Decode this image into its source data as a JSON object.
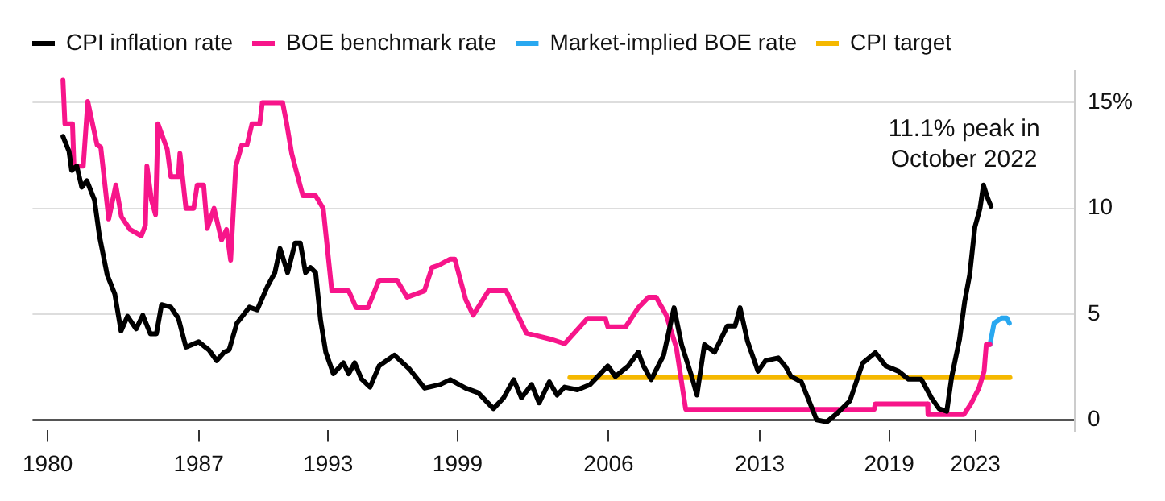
{
  "chart_data": {
    "type": "line",
    "legend": "top left",
    "grid": "y",
    "marker": "none",
    "line_style": "solid",
    "xlim": [
      1979.3,
      2027.6
    ],
    "xticks": [
      1980,
      1987,
      1993,
      1999,
      2006,
      2013,
      2019,
      2023
    ],
    "ylim": [
      -0.5,
      16.5
    ],
    "yticks": [
      0,
      5,
      10,
      {
        "value": 15,
        "label": "15%"
      }
    ],
    "annotations": [
      {
        "text": "11.1% peak in October 2022",
        "x": 2023.37,
        "y": 11.1
      }
    ],
    "series": [
      {
        "name": "CPI inflation rate",
        "color": "#000000",
        "x": [
          1980.71,
          1980.99,
          1981.11,
          1981.35,
          1981.58,
          1981.82,
          1982.17,
          1982.4,
          1982.76,
          1983.11,
          1983.4,
          1983.7,
          1984.1,
          1984.41,
          1984.76,
          1985.04,
          1985.28,
          1985.71,
          1986.06,
          1986.41,
          1987.0,
          1987.47,
          1987.83,
          1988.18,
          1988.41,
          1988.77,
          1989.35,
          1989.71,
          1990.18,
          1990.53,
          1990.77,
          1991.12,
          1991.47,
          1991.71,
          1991.95,
          1992.18,
          1992.42,
          1992.65,
          1992.89,
          1993.24,
          1993.71,
          1993.95,
          1994.23,
          1994.54,
          1994.94,
          1995.36,
          1996.07,
          1996.77,
          1997.47,
          1998.19,
          1998.66,
          1999.37,
          1999.95,
          2000.66,
          2001.13,
          2001.6,
          2001.96,
          2002.43,
          2002.78,
          2003.25,
          2003.61,
          2003.96,
          2004.55,
          2005.14,
          2005.96,
          2006.31,
          2006.91,
          2007.37,
          2007.61,
          2007.97,
          2008.55,
          2009.03,
          2009.38,
          2009.85,
          2010.09,
          2010.44,
          2010.91,
          2011.5,
          2011.86,
          2012.09,
          2012.44,
          2012.92,
          2013.27,
          2013.86,
          2014.21,
          2014.45,
          2014.93,
          2015.64,
          2016.11,
          2016.58,
          2017.18,
          2017.77,
          2018.36,
          2018.84,
          2019.43,
          2019.9,
          2020.49,
          2020.96,
          2021.31,
          2021.67,
          2021.9,
          2022.26,
          2022.5,
          2022.73,
          2022.97,
          2023.21,
          2023.37,
          2023.56,
          2023.72
        ],
        "values": [
          13.4,
          12.7,
          11.8,
          12.0,
          11.0,
          11.3,
          10.4,
          8.7,
          6.85,
          5.96,
          4.2,
          4.9,
          4.3,
          4.95,
          4.07,
          4.07,
          5.45,
          5.33,
          4.8,
          3.44,
          3.69,
          3.31,
          2.8,
          3.2,
          3.31,
          4.57,
          5.33,
          5.2,
          6.3,
          6.96,
          8.1,
          6.96,
          8.36,
          8.36,
          6.96,
          7.2,
          6.96,
          4.7,
          3.2,
          2.18,
          2.7,
          2.18,
          2.7,
          1.94,
          1.55,
          2.55,
          3.06,
          2.4,
          1.5,
          1.67,
          1.9,
          1.5,
          1.28,
          0.53,
          1.04,
          1.9,
          1.04,
          1.67,
          0.8,
          1.8,
          1.17,
          1.55,
          1.42,
          1.67,
          2.55,
          2.05,
          2.55,
          3.2,
          2.55,
          1.9,
          3.06,
          5.3,
          3.56,
          2.05,
          1.17,
          3.56,
          3.2,
          4.44,
          4.44,
          5.3,
          3.7,
          2.3,
          2.8,
          2.93,
          2.5,
          2.05,
          1.8,
          0.0,
          -0.1,
          0.3,
          0.9,
          2.68,
          3.18,
          2.55,
          2.3,
          1.92,
          1.92,
          1.04,
          0.53,
          0.4,
          2.05,
          3.8,
          5.6,
          6.85,
          9.1,
          10.0,
          11.1,
          10.5,
          10.1
        ]
      },
      {
        "name": "BOE benchmark rate",
        "color": "#f7158a",
        "x": [
          1980.71,
          1980.8,
          1981.15,
          1981.22,
          1981.65,
          1981.86,
          1982.29,
          1982.46,
          1982.83,
          1983.16,
          1983.42,
          1983.82,
          1984.34,
          1984.53,
          1984.6,
          1984.81,
          1985.0,
          1985.11,
          1985.54,
          1985.71,
          1986.06,
          1986.13,
          1986.41,
          1986.77,
          1986.93,
          1987.23,
          1987.4,
          1987.71,
          1988.06,
          1988.29,
          1988.48,
          1988.72,
          1989.0,
          1989.24,
          1989.47,
          1989.83,
          1989.95,
          1990.89,
          1991.08,
          1991.31,
          1991.59,
          1991.83,
          1992.42,
          1992.77,
          1993.17,
          1993.95,
          1994.3,
          1994.84,
          1995.36,
          1996.19,
          1996.66,
          1997.46,
          1997.81,
          1998.1,
          1998.66,
          1998.87,
          1999.37,
          1999.72,
          2000.43,
          2001.25,
          2002.19,
          2003.37,
          2003.96,
          2005.02,
          2005.85,
          2005.96,
          2006.79,
          2007.37,
          2007.85,
          2008.2,
          2008.67,
          2009.14,
          2009.57,
          2018.31,
          2018.35,
          2020.78,
          2020.8,
          2022.46,
          2022.8,
          2023.16,
          2023.4,
          2023.5,
          2023.67
        ],
        "values": [
          16.06,
          14.0,
          14.0,
          12.0,
          12.0,
          15.05,
          13.0,
          12.9,
          9.5,
          11.1,
          9.6,
          9.0,
          8.7,
          9.2,
          12.0,
          10.4,
          9.7,
          14.0,
          12.8,
          11.5,
          11.5,
          12.6,
          10.0,
          10.0,
          11.1,
          11.1,
          9.05,
          10.0,
          8.5,
          9.0,
          7.55,
          12.0,
          13.0,
          13.0,
          14.0,
          14.0,
          15.0,
          15.0,
          14.0,
          12.6,
          11.5,
          10.6,
          10.6,
          10.0,
          6.1,
          6.1,
          5.3,
          5.3,
          6.6,
          6.6,
          5.8,
          6.1,
          7.2,
          7.3,
          7.6,
          7.6,
          5.7,
          4.95,
          6.1,
          6.1,
          4.1,
          3.8,
          3.6,
          4.8,
          4.8,
          4.4,
          4.4,
          5.3,
          5.8,
          5.8,
          4.95,
          3.4,
          0.5,
          0.5,
          0.75,
          0.75,
          0.25,
          0.25,
          0.78,
          1.5,
          2.3,
          3.56,
          3.56
        ]
      },
      {
        "name": "Market-implied BOE rate",
        "color": "#29a8f0",
        "x": [
          2023.67,
          2023.86,
          2024.21,
          2024.45,
          2024.57
        ],
        "values": [
          3.56,
          4.57,
          4.82,
          4.82,
          4.57
        ]
      },
      {
        "name": "CPI target",
        "color": "#f5b800",
        "x": [
          2004.2,
          2024.6
        ],
        "values": [
          2.0,
          2.0
        ]
      }
    ]
  }
}
